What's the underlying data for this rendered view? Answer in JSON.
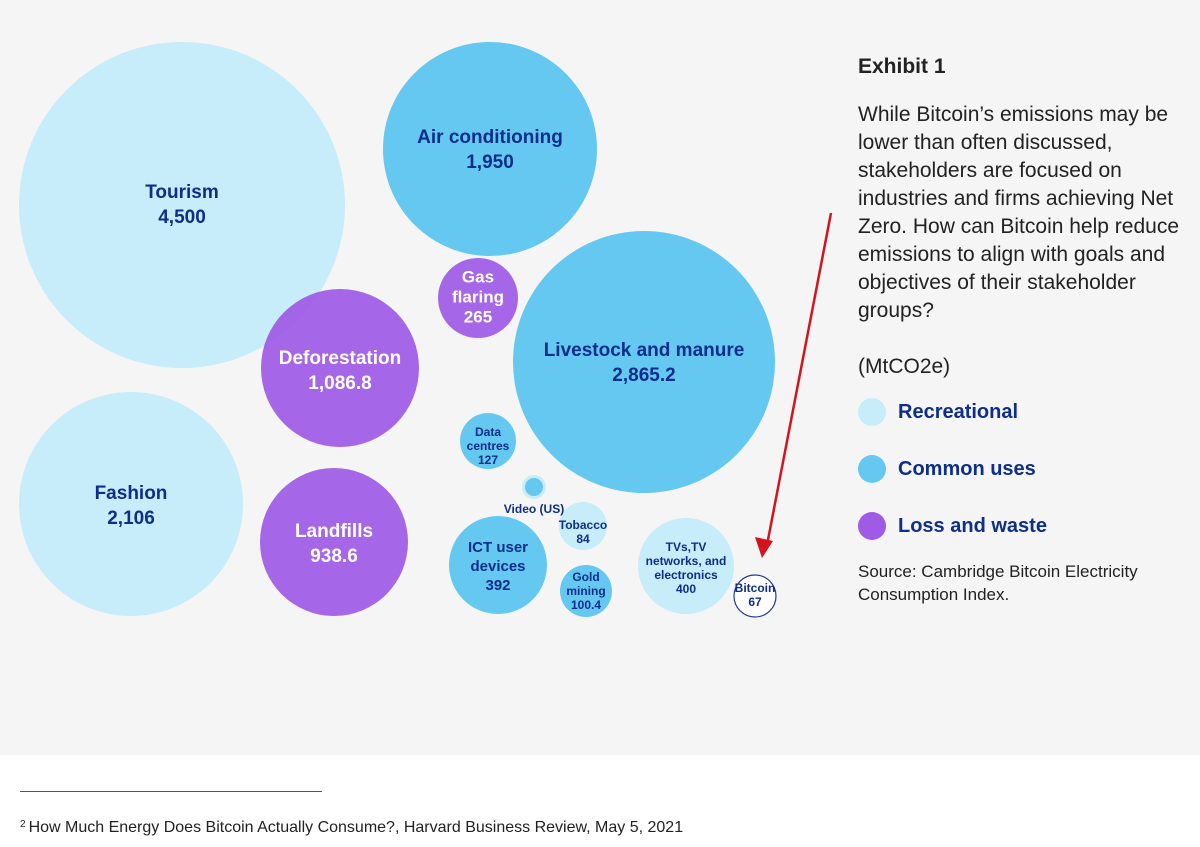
{
  "exhibit": {
    "label": "Exhibit 1",
    "headline": "While Bitcoin’s emissions may be lower than often discussed, stakeholders are focused on industries and firms achieving Net Zero. How can Bitcoin help reduce emissions to align with goals and objectives of their stakeholder groups?",
    "units": "(MtCO2e)",
    "source": "Source: Cambridge Bitcoin Electricity Consumption Index."
  },
  "footnote": {
    "marker": "2",
    "text": "How Much Energy Does Bitcoin Actually Consume?, Harvard Business Review, May 5, 2021"
  },
  "colors": {
    "recreational": "#c7ecfa",
    "common": "#64c8f0",
    "loss": "#9f5ae6",
    "bitcoin_fill": "#ffffff",
    "bitcoin_stroke": "#1f3c96",
    "label_text": "#0d2e8a",
    "arrow": "#d3141c"
  },
  "chart_data": {
    "type": "bubble",
    "unit": "MtCO2e",
    "legend": [
      {
        "key": "recreational",
        "label": "Recreational"
      },
      {
        "key": "common",
        "label": "Common uses"
      },
      {
        "key": "loss",
        "label": "Loss and waste"
      }
    ],
    "bubbles": [
      {
        "name": "Tourism",
        "label_lines": [
          "Tourism"
        ],
        "value_text": "4,500",
        "value": 4500,
        "category": "recreational"
      },
      {
        "name": "Fashion",
        "label_lines": [
          "Fashion"
        ],
        "value_text": "2,106",
        "value": 2106,
        "category": "recreational"
      },
      {
        "name": "Air conditioning",
        "label_lines": [
          "Air conditioning"
        ],
        "value_text": "1,950",
        "value": 1950,
        "category": "common"
      },
      {
        "name": "Livestock and manure",
        "label_lines": [
          "Livestock and manure"
        ],
        "value_text": "2,865.2",
        "value": 2865.2,
        "category": "common"
      },
      {
        "name": "Deforestation",
        "label_lines": [
          "Deforestation"
        ],
        "value_text": "1,086.8",
        "value": 1086.8,
        "category": "loss"
      },
      {
        "name": "Landfills",
        "label_lines": [
          "Landfills"
        ],
        "value_text": "938.6",
        "value": 938.6,
        "category": "loss"
      },
      {
        "name": "Gas flaring",
        "label_lines": [
          "Gas",
          "flaring"
        ],
        "value_text": "265",
        "value": 265,
        "category": "loss"
      },
      {
        "name": "Data centres",
        "label_lines": [
          "Data",
          "centres"
        ],
        "value_text": "127",
        "value": 127,
        "category": "common"
      },
      {
        "name": "Video (US)",
        "label_lines": [
          "Video (US)"
        ],
        "value_text": "",
        "value": null,
        "category": "common"
      },
      {
        "name": "ICT user devices",
        "label_lines": [
          "ICT user",
          "devices"
        ],
        "value_text": "392",
        "value": 392,
        "category": "common"
      },
      {
        "name": "Tobacco",
        "label_lines": [
          "Tobacco"
        ],
        "value_text": "84",
        "value": 84,
        "category": "recreational"
      },
      {
        "name": "Gold mining",
        "label_lines": [
          "Gold",
          "mining"
        ],
        "value_text": "100.4",
        "value": 100.4,
        "category": "common"
      },
      {
        "name": "TVs, TV networks, and electronics",
        "label_lines": [
          "TVs,TV",
          "networks, and",
          "electronics"
        ],
        "value_text": "400",
        "value": 400,
        "category": "recreational"
      },
      {
        "name": "Bitcoin",
        "label_lines": [
          "Bitcoin"
        ],
        "value_text": "67",
        "value": 67,
        "category": "bitcoin"
      }
    ],
    "annotation": {
      "type": "arrow",
      "target": "Bitcoin"
    }
  }
}
